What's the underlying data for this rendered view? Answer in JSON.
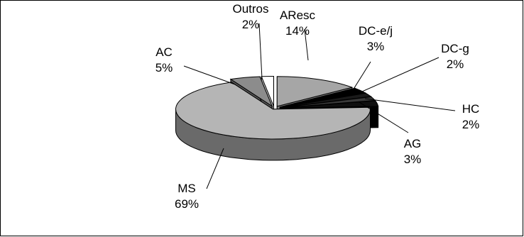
{
  "chart_data": {
    "type": "pie",
    "style": "3d-exploded",
    "title": "",
    "slices": [
      {
        "label": "AResc",
        "value": 14,
        "percent_label": "14%",
        "color": "#a6a6a6",
        "side_color": "#7a7a7a"
      },
      {
        "label": "DC-e/j",
        "value": 3,
        "percent_label": "3%",
        "color": "#000000",
        "side_color": "#000000"
      },
      {
        "label": "DC-g",
        "value": 2,
        "percent_label": "2%",
        "color": "#1a1a1a",
        "side_color": "#111111"
      },
      {
        "label": "HC",
        "value": 2,
        "percent_label": "2%",
        "color": "#3a3a3a",
        "side_color": "#222222"
      },
      {
        "label": "AG",
        "value": 3,
        "percent_label": "3%",
        "color": "#101010",
        "side_color": "#000000"
      },
      {
        "label": "MS",
        "value": 69,
        "percent_label": "69%",
        "color": "#b5b5b5",
        "side_color": "#6a6a6a"
      },
      {
        "label": "AC",
        "value": 5,
        "percent_label": "5%",
        "color": "#8c8c8c",
        "side_color": "#555555"
      },
      {
        "label": "Outros",
        "value": 2,
        "percent_label": "2%",
        "color": "#ffffff",
        "side_color": "#dcdcdc"
      }
    ]
  }
}
